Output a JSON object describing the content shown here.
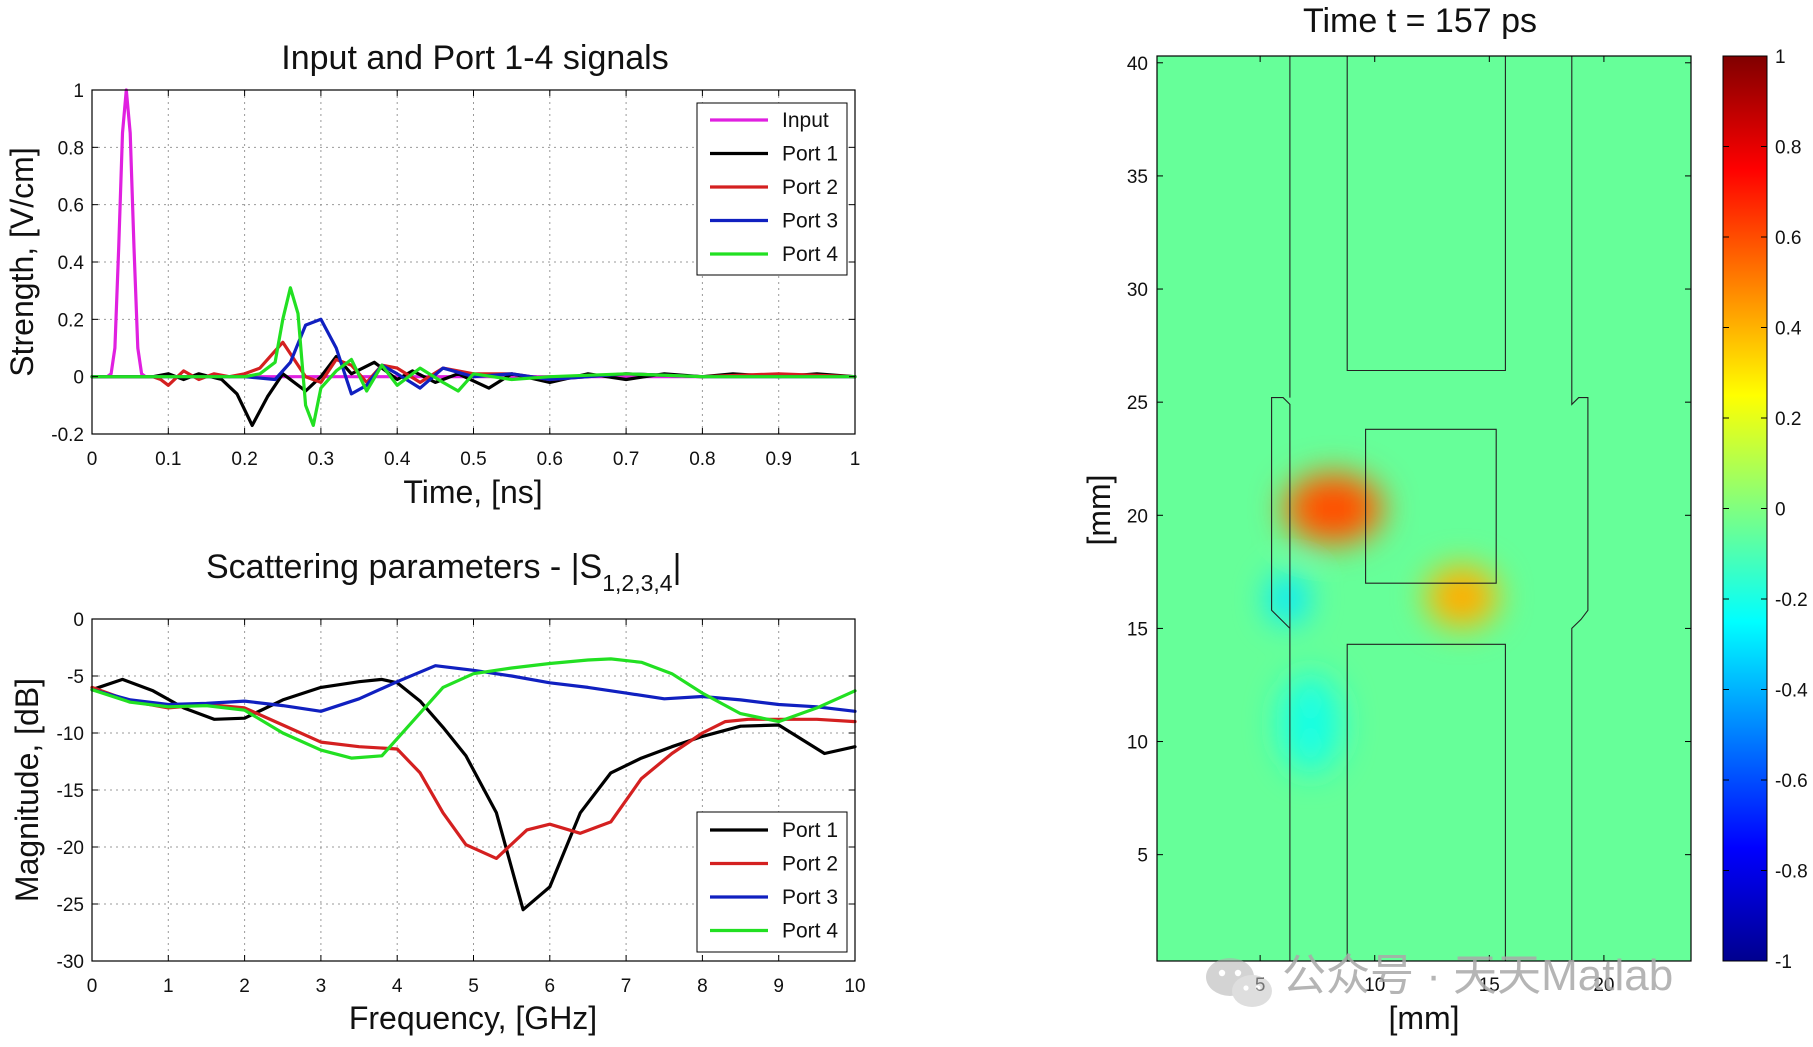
{
  "chart_data": [
    {
      "type": "line",
      "title": "Input and Port 1-4 signals",
      "xlabel": "Time, [ns]",
      "ylabel": "Strength, [V/cm]",
      "xlim": [
        0,
        1
      ],
      "ylim": [
        -0.2,
        1
      ],
      "xticks": [
        0,
        0.1,
        0.2,
        0.3,
        0.4,
        0.5,
        0.6,
        0.7,
        0.8,
        0.9,
        1
      ],
      "xtick_labels": [
        "0",
        "0.1",
        "0.2",
        "0.3",
        "0.4",
        "0.5",
        "0.6",
        "0.7",
        "0.8",
        "0.9",
        "1"
      ],
      "yticks": [
        -0.2,
        0,
        0.2,
        0.4,
        0.6,
        0.8,
        1
      ],
      "ytick_labels": [
        "-0.2",
        "0",
        "0.2",
        "0.4",
        "0.6",
        "0.8",
        "1"
      ],
      "grid": true,
      "legend_position": "top-right",
      "series": [
        {
          "name": "Input",
          "color": "#e020e0",
          "x": [
            0,
            0.02,
            0.025,
            0.03,
            0.035,
            0.04,
            0.045,
            0.05,
            0.055,
            0.06,
            0.065,
            0.07,
            1
          ],
          "y": [
            0,
            0,
            0.01,
            0.1,
            0.45,
            0.85,
            1,
            0.85,
            0.45,
            0.1,
            0.01,
            0,
            0
          ]
        },
        {
          "name": "Port 1",
          "color": "#000000",
          "x": [
            0,
            0.08,
            0.1,
            0.12,
            0.14,
            0.17,
            0.19,
            0.21,
            0.23,
            0.25,
            0.28,
            0.3,
            0.32,
            0.34,
            0.37,
            0.4,
            0.42,
            0.45,
            0.48,
            0.52,
            0.55,
            0.6,
            0.65,
            0.7,
            0.75,
            0.8,
            0.84,
            0.9,
            0.95,
            1
          ],
          "y": [
            0,
            0,
            0.01,
            -0.01,
            0.01,
            -0.01,
            -0.06,
            -0.17,
            -0.07,
            0.01,
            -0.05,
            0,
            0.07,
            0.01,
            0.05,
            -0.01,
            0.02,
            -0.02,
            0.01,
            -0.04,
            0.01,
            -0.02,
            0.01,
            -0.01,
            0.01,
            0,
            0.01,
            0,
            0.01,
            0
          ]
        },
        {
          "name": "Port 2",
          "color": "#d42020",
          "x": [
            0,
            0.08,
            0.09,
            0.1,
            0.12,
            0.14,
            0.16,
            0.18,
            0.2,
            0.22,
            0.24,
            0.25,
            0.26,
            0.28,
            0.3,
            0.32,
            0.34,
            0.36,
            0.38,
            0.4,
            0.43,
            0.46,
            0.5,
            0.55,
            0.6,
            0.7,
            0.8,
            0.9,
            1
          ],
          "y": [
            0,
            0,
            -0.01,
            -0.03,
            0.02,
            -0.01,
            0.01,
            0,
            0.01,
            0.03,
            0.09,
            0.12,
            0.08,
            0,
            -0.02,
            0.06,
            0.04,
            -0.02,
            0.04,
            0.03,
            -0.02,
            0.03,
            0.01,
            0.01,
            -0.01,
            0.01,
            0,
            0.01,
            0
          ]
        },
        {
          "name": "Port 3",
          "color": "#1020c0",
          "x": [
            0,
            0.2,
            0.24,
            0.26,
            0.28,
            0.3,
            0.32,
            0.34,
            0.36,
            0.38,
            0.4,
            0.43,
            0.46,
            0.5,
            0.55,
            0.6,
            0.7,
            0.8,
            0.9,
            1
          ],
          "y": [
            0,
            0,
            -0.01,
            0.05,
            0.18,
            0.2,
            0.1,
            -0.06,
            -0.03,
            0.04,
            0.01,
            -0.04,
            0.03,
            0,
            0.01,
            -0.01,
            0.01,
            0,
            0,
            0
          ]
        },
        {
          "name": "Port 4",
          "color": "#22e022",
          "x": [
            0,
            0.2,
            0.22,
            0.24,
            0.25,
            0.26,
            0.27,
            0.28,
            0.29,
            0.3,
            0.32,
            0.34,
            0.36,
            0.38,
            0.4,
            0.43,
            0.46,
            0.48,
            0.5,
            0.55,
            0.6,
            0.7,
            0.8,
            0.9,
            1
          ],
          "y": [
            0,
            0,
            0.01,
            0.05,
            0.2,
            0.31,
            0.22,
            -0.1,
            -0.17,
            -0.04,
            0.02,
            0.06,
            -0.05,
            0.04,
            -0.03,
            0.03,
            -0.02,
            -0.05,
            0.01,
            -0.01,
            0,
            0.01,
            0,
            0,
            0
          ]
        }
      ]
    },
    {
      "type": "line",
      "title_main": "Scattering parameters - |S",
      "title_subscript": "1,2,3,4",
      "title_end": "|",
      "xlabel": "Frequency, [GHz]",
      "ylabel": "Magnitude, [dB]",
      "xlim": [
        0,
        10
      ],
      "ylim": [
        -30,
        0
      ],
      "xticks": [
        0,
        1,
        2,
        3,
        4,
        5,
        6,
        7,
        8,
        9,
        10
      ],
      "xtick_labels": [
        "0",
        "1",
        "2",
        "3",
        "4",
        "5",
        "6",
        "7",
        "8",
        "9",
        "10"
      ],
      "yticks": [
        -30,
        -25,
        -20,
        -15,
        -10,
        -5,
        0
      ],
      "ytick_labels": [
        "-30",
        "-25",
        "-20",
        "-15",
        "-10",
        "-5",
        "0"
      ],
      "grid": true,
      "legend_position": "bottom-right",
      "series": [
        {
          "name": "Port 1",
          "color": "#000000",
          "x": [
            0,
            0.4,
            0.8,
            1.2,
            1.6,
            2,
            2.5,
            3,
            3.5,
            3.8,
            4,
            4.3,
            4.6,
            4.9,
            5.3,
            5.65,
            6.0,
            6.4,
            6.8,
            7.2,
            7.6,
            8.0,
            8.5,
            9.0,
            9.6,
            10
          ],
          "y": [
            -6.2,
            -5.3,
            -6.3,
            -7.8,
            -8.8,
            -8.7,
            -7.1,
            -6.0,
            -5.5,
            -5.3,
            -5.6,
            -7.2,
            -9.5,
            -12.0,
            -17.0,
            -25.5,
            -23.5,
            -17.0,
            -13.5,
            -12.2,
            -11.2,
            -10.3,
            -9.4,
            -9.3,
            -11.8,
            -11.2
          ]
        },
        {
          "name": "Port 2",
          "color": "#d42020",
          "x": [
            0,
            0.5,
            1,
            1.5,
            2,
            2.5,
            3,
            3.5,
            4,
            4.3,
            4.6,
            4.9,
            5.3,
            5.7,
            6.0,
            6.4,
            6.8,
            7.2,
            7.6,
            8.0,
            8.3,
            8.6,
            9,
            9.5,
            10
          ],
          "y": [
            -6.0,
            -7.2,
            -7.8,
            -7.5,
            -7.8,
            -9.3,
            -10.8,
            -11.2,
            -11.4,
            -13.5,
            -17.0,
            -19.8,
            -21.0,
            -18.5,
            -18.0,
            -18.8,
            -17.8,
            -14.0,
            -11.8,
            -10.0,
            -9.0,
            -8.8,
            -8.8,
            -8.8,
            -9.0
          ]
        },
        {
          "name": "Port 3",
          "color": "#1020c0",
          "x": [
            0,
            0.5,
            1,
            1.5,
            2,
            2.5,
            3,
            3.5,
            4,
            4.5,
            5,
            5.5,
            6,
            6.5,
            7,
            7.5,
            8,
            8.5,
            9,
            9.5,
            10
          ],
          "y": [
            -6.2,
            -7.1,
            -7.5,
            -7.4,
            -7.2,
            -7.6,
            -8.1,
            -7.0,
            -5.5,
            -4.1,
            -4.5,
            -5.0,
            -5.6,
            -6.0,
            -6.5,
            -7.0,
            -6.8,
            -7.1,
            -7.5,
            -7.7,
            -8.1
          ]
        },
        {
          "name": "Port 4",
          "color": "#22e022",
          "x": [
            0,
            0.5,
            1,
            1.5,
            2,
            2.5,
            3,
            3.4,
            3.8,
            4.2,
            4.6,
            5,
            5.5,
            6,
            6.5,
            6.8,
            7.2,
            7.6,
            8,
            8.5,
            9,
            9.5,
            10
          ],
          "y": [
            -6.2,
            -7.3,
            -7.7,
            -7.6,
            -8.0,
            -10.0,
            -11.5,
            -12.2,
            -12.0,
            -9.0,
            -6.0,
            -4.8,
            -4.3,
            -3.9,
            -3.6,
            -3.5,
            -3.8,
            -4.8,
            -6.5,
            -8.3,
            -9.0,
            -7.8,
            -6.3
          ]
        }
      ]
    },
    {
      "type": "heatmap",
      "title": "Time t = 157 ps",
      "xlabel": "[mm]",
      "ylabel": "[mm]",
      "xlim": [
        0.5,
        23.8
      ],
      "ylim": [
        0.3,
        40.3
      ],
      "xticks": [
        5,
        10,
        15,
        20
      ],
      "xtick_labels": [
        "5",
        "10",
        "15",
        "20"
      ],
      "yticks": [
        5,
        10,
        15,
        20,
        25,
        30,
        35,
        40
      ],
      "ytick_labels": [
        "5",
        "10",
        "15",
        "20",
        "25",
        "30",
        "35",
        "40"
      ],
      "colorbar_range": [
        -1,
        1
      ],
      "colorbar_ticks": [
        -1,
        -0.8,
        -0.6,
        -0.4,
        -0.2,
        0,
        0.2,
        0.4,
        0.6,
        0.8,
        1
      ],
      "colorbar_tick_labels": [
        "-1",
        "-0.8",
        "-0.6",
        "-0.4",
        "-0.2",
        "0",
        "0.2",
        "0.4",
        "0.6",
        "0.8",
        "1"
      ],
      "colormap": "jet",
      "background_value": -0.05,
      "field_blobs": [
        {
          "cx": 8.2,
          "cy": 20.3,
          "rx": 2.2,
          "ry": 1.6,
          "value": 0.55
        },
        {
          "cx": 6.2,
          "cy": 16.3,
          "rx": 0.9,
          "ry": 1.1,
          "value": -0.28
        },
        {
          "cx": 13.8,
          "cy": 16.4,
          "rx": 1.6,
          "ry": 1.4,
          "value": 0.38
        },
        {
          "cx": 7.2,
          "cy": 10.8,
          "rx": 1.4,
          "ry": 2.2,
          "value": -0.18
        }
      ],
      "outline": [
        [
          6.3,
          0.3
        ],
        [
          6.3,
          24.9
        ],
        [
          6.0,
          25.2
        ],
        [
          5.5,
          25.2
        ],
        [
          5.5,
          15.8
        ],
        [
          6.0,
          15.3
        ],
        [
          6.3,
          15.0
        ]
      ],
      "outline_right": [
        [
          18.6,
          0.3
        ],
        [
          18.6,
          15.0
        ],
        [
          19.0,
          15.4
        ],
        [
          19.3,
          15.8
        ],
        [
          19.3,
          25.2
        ],
        [
          18.9,
          25.2
        ],
        [
          18.6,
          24.9
        ],
        [
          18.6,
          40.3
        ]
      ],
      "outline_left_top": [
        [
          6.3,
          25.2
        ],
        [
          6.3,
          40.3
        ]
      ],
      "outline_top_rect": [
        [
          8.8,
          40.3
        ],
        [
          8.8,
          26.4
        ],
        [
          15.7,
          26.4
        ],
        [
          15.7,
          40.3
        ]
      ],
      "outline_bottom_rect": [
        [
          8.8,
          0.3
        ],
        [
          8.8,
          14.3
        ],
        [
          15.7,
          14.3
        ],
        [
          15.7,
          0.3
        ]
      ],
      "outline_center_rect": [
        [
          9.6,
          23.8
        ],
        [
          15.3,
          23.8
        ],
        [
          15.3,
          17.0
        ],
        [
          9.6,
          17.0
        ]
      ]
    }
  ],
  "watermark": {
    "text": "公众号 · 天天Matlab"
  }
}
